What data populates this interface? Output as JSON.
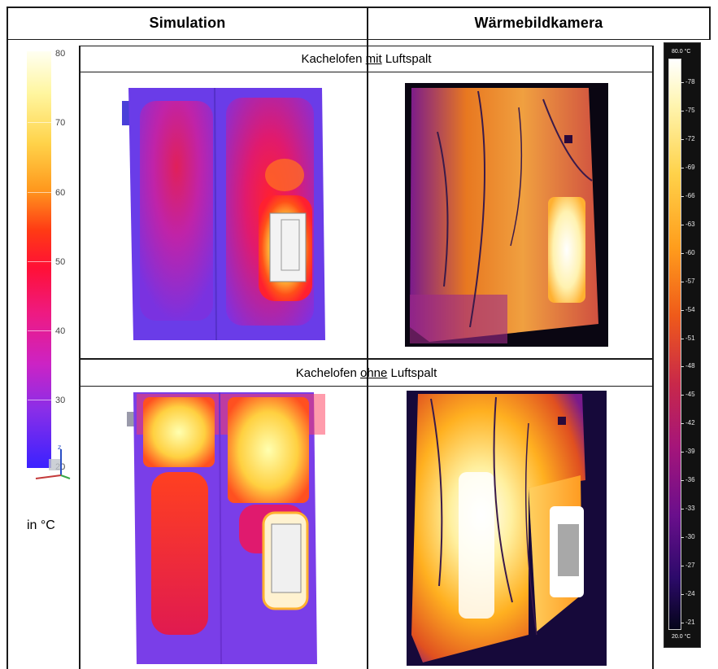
{
  "headers": {
    "simulation": "Simulation",
    "camera": "Wärmebildkamera"
  },
  "rows": [
    {
      "prefix": "Kachelofen ",
      "keyword": "mit",
      "suffix": " Luftspalt"
    },
    {
      "prefix": "Kachelofen ",
      "keyword": "ohne",
      "suffix": " Luftspalt"
    }
  ],
  "sim_scale": {
    "unit_label": "in °C",
    "ticks": [
      "80",
      "70",
      "60",
      "50",
      "40",
      "30",
      "20"
    ]
  },
  "camera_scale": {
    "max_label": "80.0 °C",
    "min_label": "20.0 °C",
    "ticks": [
      "78",
      "75",
      "72",
      "69",
      "66",
      "63",
      "60",
      "57",
      "54",
      "51",
      "48",
      "45",
      "42",
      "39",
      "36",
      "33",
      "30",
      "27",
      "24",
      "21"
    ]
  },
  "colors": {
    "grid_line": "#1a1a1a",
    "sim_low": "#3a22ff",
    "sim_high": "#fffff2",
    "thermal_low": "#05051a",
    "thermal_high": "#ffffff"
  }
}
